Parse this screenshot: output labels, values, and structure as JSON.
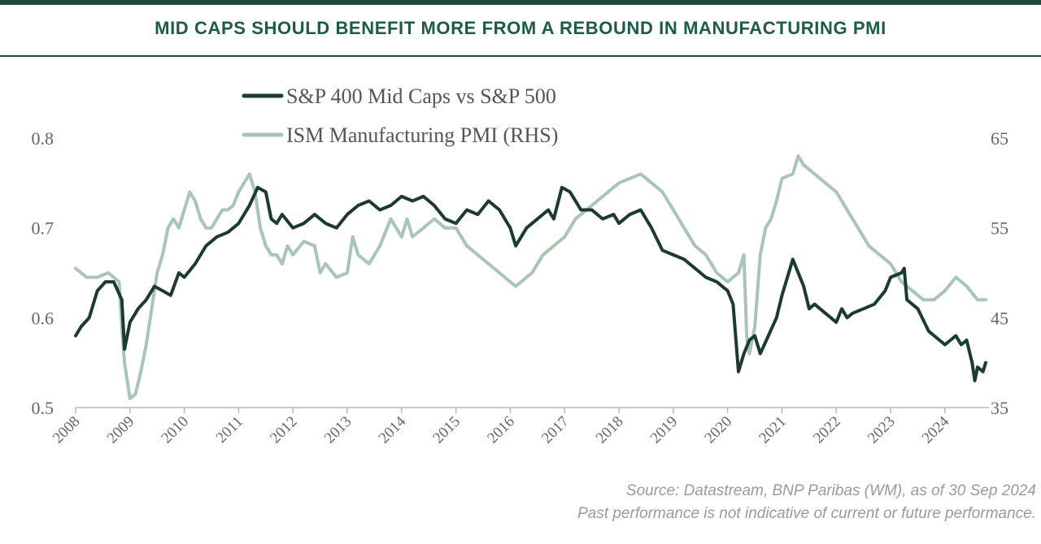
{
  "title": "MID CAPS SHOULD BENEFIT MORE FROM A REBOUND IN MANUFACTURING PMI",
  "source": "Source: Datastream, BNP Paribas (WM), as of 30 Sep 2024",
  "disclaimer": "Past performance is not indicative of current or future performance.",
  "colors": {
    "accent": "#1e4d3f",
    "series_midcap": "#1c3a31",
    "series_pmi": "#a9c5b3",
    "title": "#1e5a4a"
  },
  "chart_data": {
    "type": "line",
    "legend_position": "top-left",
    "grid": false,
    "xlim": [
      2008,
      2024.75
    ],
    "x_ticks": [
      "2008",
      "2009",
      "2010",
      "2011",
      "2012",
      "2013",
      "2014",
      "2015",
      "2016",
      "2017",
      "2018",
      "2019",
      "2020",
      "2021",
      "2022",
      "2023",
      "2024"
    ],
    "y_left": {
      "lim": [
        0.5,
        0.8
      ],
      "ticks": [
        "0.5",
        "0.6",
        "0.7",
        "0.8"
      ]
    },
    "y_right": {
      "lim": [
        35,
        65
      ],
      "ticks": [
        "35",
        "45",
        "55",
        "65"
      ]
    },
    "series": [
      {
        "name": "S&P 400 Mid Caps vs S&P 500",
        "axis": "left",
        "x": [
          2008.0,
          2008.1,
          2008.25,
          2008.4,
          2008.55,
          2008.7,
          2008.85,
          2008.9,
          2009.0,
          2009.15,
          2009.3,
          2009.45,
          2009.6,
          2009.75,
          2009.9,
          2010.0,
          2010.2,
          2010.4,
          2010.6,
          2010.8,
          2011.0,
          2011.2,
          2011.35,
          2011.5,
          2011.6,
          2011.7,
          2011.8,
          2012.0,
          2012.2,
          2012.4,
          2012.6,
          2012.8,
          2013.0,
          2013.2,
          2013.4,
          2013.6,
          2013.8,
          2014.0,
          2014.2,
          2014.4,
          2014.6,
          2014.8,
          2015.0,
          2015.2,
          2015.4,
          2015.6,
          2015.8,
          2016.0,
          2016.1,
          2016.3,
          2016.5,
          2016.7,
          2016.8,
          2016.95,
          2017.1,
          2017.3,
          2017.5,
          2017.7,
          2017.9,
          2018.0,
          2018.2,
          2018.4,
          2018.6,
          2018.8,
          2019.0,
          2019.2,
          2019.4,
          2019.6,
          2019.8,
          2020.0,
          2020.1,
          2020.2,
          2020.3,
          2020.4,
          2020.5,
          2020.6,
          2020.75,
          2020.9,
          2021.0,
          2021.1,
          2021.2,
          2021.3,
          2021.4,
          2021.5,
          2021.6,
          2021.8,
          2022.0,
          2022.1,
          2022.2,
          2022.3,
          2022.5,
          2022.7,
          2022.9,
          2023.0,
          2023.2,
          2023.25,
          2023.3,
          2023.5,
          2023.7,
          2023.9,
          2024.0,
          2024.1,
          2024.2,
          2024.3,
          2024.4,
          2024.5,
          2024.55,
          2024.6,
          2024.7,
          2024.75
        ],
        "values": [
          0.58,
          0.59,
          0.6,
          0.63,
          0.64,
          0.64,
          0.62,
          0.565,
          0.595,
          0.61,
          0.62,
          0.635,
          0.63,
          0.625,
          0.65,
          0.645,
          0.66,
          0.68,
          0.69,
          0.695,
          0.705,
          0.725,
          0.745,
          0.74,
          0.71,
          0.705,
          0.715,
          0.7,
          0.705,
          0.715,
          0.705,
          0.7,
          0.715,
          0.725,
          0.73,
          0.72,
          0.725,
          0.735,
          0.73,
          0.735,
          0.725,
          0.71,
          0.705,
          0.72,
          0.715,
          0.73,
          0.72,
          0.7,
          0.68,
          0.7,
          0.71,
          0.72,
          0.71,
          0.745,
          0.74,
          0.72,
          0.72,
          0.71,
          0.715,
          0.705,
          0.715,
          0.72,
          0.7,
          0.675,
          0.67,
          0.665,
          0.655,
          0.645,
          0.64,
          0.63,
          0.615,
          0.54,
          0.56,
          0.575,
          0.58,
          0.56,
          0.58,
          0.6,
          0.625,
          0.645,
          0.665,
          0.65,
          0.635,
          0.61,
          0.615,
          0.605,
          0.595,
          0.61,
          0.6,
          0.605,
          0.61,
          0.615,
          0.63,
          0.645,
          0.65,
          0.655,
          0.62,
          0.61,
          0.585,
          0.575,
          0.57,
          0.575,
          0.58,
          0.57,
          0.575,
          0.55,
          0.53,
          0.545,
          0.54,
          0.55
        ]
      },
      {
        "name": "ISM Manufacturing PMI (RHS)",
        "axis": "right",
        "x": [
          2008.0,
          2008.2,
          2008.4,
          2008.6,
          2008.8,
          2008.85,
          2008.9,
          2009.0,
          2009.1,
          2009.2,
          2009.3,
          2009.4,
          2009.5,
          2009.6,
          2009.7,
          2009.8,
          2009.9,
          2010.0,
          2010.1,
          2010.2,
          2010.3,
          2010.4,
          2010.5,
          2010.6,
          2010.7,
          2010.8,
          2010.9,
          2011.0,
          2011.1,
          2011.2,
          2011.3,
          2011.4,
          2011.5,
          2011.6,
          2011.7,
          2011.8,
          2011.9,
          2012.0,
          2012.2,
          2012.4,
          2012.5,
          2012.6,
          2012.8,
          2013.0,
          2013.1,
          2013.2,
          2013.4,
          2013.6,
          2013.8,
          2014.0,
          2014.1,
          2014.2,
          2014.4,
          2014.6,
          2014.8,
          2015.0,
          2015.2,
          2015.4,
          2015.6,
          2015.8,
          2016.0,
          2016.1,
          2016.2,
          2016.4,
          2016.6,
          2016.8,
          2017.0,
          2017.2,
          2017.4,
          2017.6,
          2017.8,
          2018.0,
          2018.2,
          2018.4,
          2018.6,
          2018.8,
          2019.0,
          2019.2,
          2019.4,
          2019.6,
          2019.8,
          2020.0,
          2020.1,
          2020.2,
          2020.3,
          2020.35,
          2020.4,
          2020.5,
          2020.6,
          2020.7,
          2020.8,
          2020.9,
          2021.0,
          2021.2,
          2021.3,
          2021.4,
          2021.6,
          2021.8,
          2022.0,
          2022.2,
          2022.4,
          2022.6,
          2022.8,
          2023.0,
          2023.2,
          2023.4,
          2023.6,
          2023.8,
          2024.0,
          2024.2,
          2024.4,
          2024.6,
          2024.75
        ],
        "values": [
          50.5,
          49.5,
          49.5,
          50,
          49,
          44,
          40,
          36,
          36.5,
          39,
          42,
          46,
          50,
          52,
          55,
          56,
          55,
          57,
          59,
          58,
          56,
          55,
          55,
          56,
          57,
          57,
          57.5,
          59,
          60,
          61,
          59,
          55,
          53,
          52,
          52,
          51,
          53,
          52,
          53.5,
          53,
          50,
          51,
          49.5,
          50,
          54,
          52,
          51,
          53,
          56,
          54,
          56,
          54,
          55,
          56,
          55,
          55,
          53,
          52,
          51,
          50,
          49,
          48.5,
          49,
          50,
          52,
          53,
          54,
          56,
          57,
          58,
          59,
          60,
          60.5,
          61,
          60,
          59,
          57,
          55,
          53,
          52,
          50,
          49,
          49.5,
          50,
          52,
          43,
          41,
          44,
          52,
          55,
          56,
          58,
          60.5,
          61,
          63,
          62,
          61,
          60,
          59,
          57,
          55,
          53,
          52,
          51,
          49,
          48,
          47,
          47,
          48,
          49.5,
          48.5,
          47,
          47
        ]
      }
    ]
  }
}
